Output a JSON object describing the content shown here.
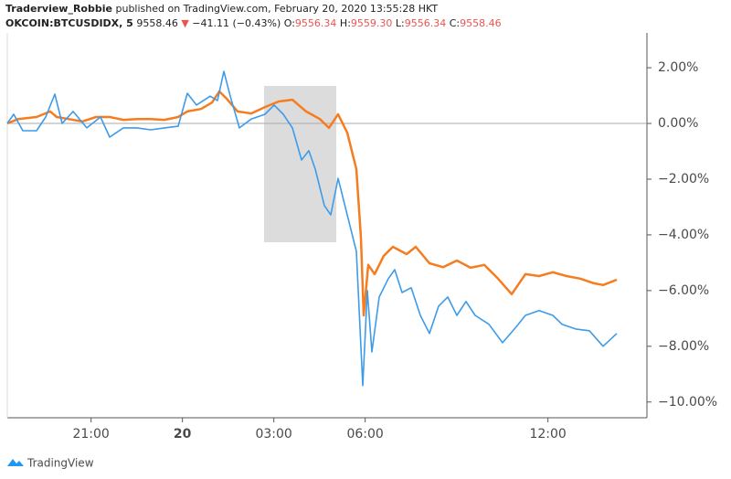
{
  "header": {
    "publisher": "Traderview_Robbie",
    "published": "published on TradingView.com, February 20, 2020 13:55:28 HKT",
    "symbol": "OKCOIN:BTCUSDIDX, 5",
    "last": "9558.46",
    "arrow": "▼",
    "change": "−41.11 (−0.43%)",
    "ohlc": [
      {
        "label": "O:",
        "value": "9556.34"
      },
      {
        "label": "H:",
        "value": "9559.30"
      },
      {
        "label": "L:",
        "value": "9556.34"
      },
      {
        "label": "C:",
        "value": "9558.46"
      }
    ]
  },
  "footer": {
    "brand": "TradingView"
  },
  "chart_data": {
    "type": "line",
    "xlim": [
      18.25,
      39.25
    ],
    "xticks": [
      {
        "value": 21,
        "label": "21:00"
      },
      {
        "value": 24,
        "label": "20"
      },
      {
        "value": 27,
        "label": "03:00"
      },
      {
        "value": 30,
        "label": "06:00"
      },
      {
        "value": 36,
        "label": "12:00"
      }
    ],
    "ylim": [
      -10.5,
      3.25
    ],
    "yticks": [
      {
        "value": 2,
        "label": "2.00%"
      },
      {
        "value": 0,
        "label": "0.00%"
      },
      {
        "value": -2,
        "label": "−2.00%"
      },
      {
        "value": -4,
        "label": "−4.00%"
      },
      {
        "value": -6,
        "label": "−6.00%"
      },
      {
        "value": -8,
        "label": "−8.00%"
      },
      {
        "value": -10,
        "label": "−10.00%"
      }
    ],
    "series": [
      {
        "color": "#f57c1f",
        "x": [
          18.25,
          18.61,
          19.21,
          19.66,
          19.87,
          20.26,
          20.71,
          21.16,
          21.61,
          22.06,
          22.51,
          22.96,
          23.41,
          23.86,
          24.16,
          24.61,
          24.97,
          25.21,
          25.45,
          25.81,
          26.26,
          26.71,
          27.16,
          27.61,
          28.06,
          28.51,
          28.81,
          29.11,
          29.41,
          29.71,
          29.86,
          29.95,
          30.1,
          30.31,
          30.61,
          30.91,
          31.36,
          31.66,
          32.11,
          32.56,
          33.01,
          33.46,
          33.91,
          34.36,
          34.81,
          35.26,
          35.71,
          36.16,
          36.61,
          37.06,
          37.51,
          37.81,
          38.26
        ],
        "values": [
          0,
          0.16,
          0.23,
          0.43,
          0.23,
          0.16,
          0.07,
          0.23,
          0.23,
          0.13,
          0.16,
          0.16,
          0.13,
          0.23,
          0.43,
          0.52,
          0.75,
          1.15,
          0.89,
          0.43,
          0.36,
          0.59,
          0.79,
          0.85,
          0.43,
          0.16,
          -0.16,
          0.33,
          -0.33,
          -1.64,
          -4.1,
          -6.89,
          -5.08,
          -5.41,
          -4.75,
          -4.43,
          -4.69,
          -4.43,
          -5.02,
          -5.16,
          -4.92,
          -5.18,
          -5.08,
          -5.57,
          -6.13,
          -5.41,
          -5.48,
          -5.34,
          -5.48,
          -5.57,
          -5.74,
          -5.8,
          -5.61
        ]
      },
      {
        "color": "#3d9be9",
        "x": [
          18.25,
          18.46,
          18.76,
          19.21,
          19.51,
          19.81,
          20.05,
          20.41,
          20.86,
          21.31,
          21.61,
          22.06,
          22.51,
          22.96,
          23.41,
          23.86,
          24.16,
          24.46,
          24.91,
          25.15,
          25.36,
          25.57,
          25.87,
          26.26,
          26.71,
          27.01,
          27.31,
          27.61,
          27.91,
          28.15,
          28.36,
          28.66,
          28.87,
          29.11,
          29.41,
          29.71,
          29.92,
          30.07,
          30.22,
          30.46,
          30.76,
          30.97,
          31.21,
          31.51,
          31.81,
          32.11,
          32.41,
          32.71,
          33.01,
          33.31,
          33.61,
          34.06,
          34.51,
          34.96,
          35.26,
          35.71,
          36.16,
          36.46,
          36.91,
          37.36,
          37.81,
          38.26
        ],
        "values": [
          0,
          0.33,
          -0.26,
          -0.26,
          0.23,
          1.05,
          0,
          0.43,
          -0.16,
          0.23,
          -0.49,
          -0.16,
          -0.16,
          -0.23,
          -0.16,
          -0.1,
          1.08,
          0.66,
          0.98,
          0.82,
          1.87,
          0.98,
          -0.16,
          0.16,
          0.33,
          0.66,
          0.33,
          -0.16,
          -1.31,
          -0.98,
          -1.64,
          -2.95,
          -3.28,
          -1.97,
          -3.28,
          -4.59,
          -9.41,
          -6.0,
          -8.2,
          -6.23,
          -5.57,
          -5.25,
          -6.07,
          -5.9,
          -6.89,
          -7.54,
          -6.56,
          -6.23,
          -6.89,
          -6.39,
          -6.89,
          -7.21,
          -7.87,
          -7.3,
          -6.89,
          -6.72,
          -6.89,
          -7.21,
          -7.38,
          -7.44,
          -8.0,
          -7.54
        ]
      }
    ]
  }
}
